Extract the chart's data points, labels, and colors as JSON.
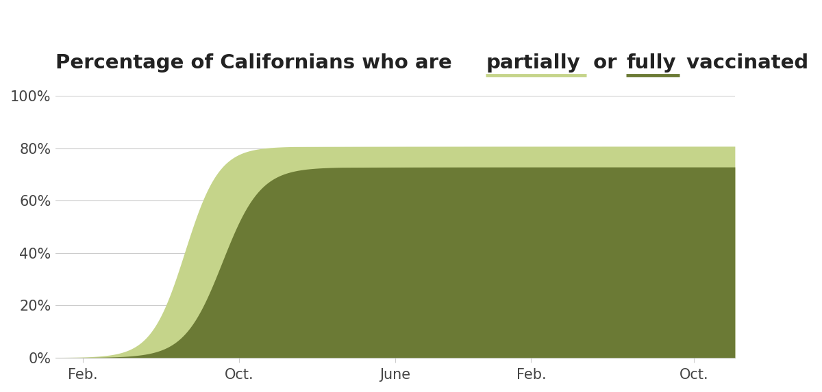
{
  "partially_color": "#c5d48a",
  "fully_color": "#6b7a35",
  "background_color": "#ffffff",
  "grid_color": "#cccccc",
  "tick_label_color": "#444444",
  "title_color": "#222222",
  "ylim": [
    0,
    100
  ],
  "yticks": [
    0,
    20,
    40,
    60,
    80,
    100
  ],
  "ytick_labels": [
    "0%",
    "20%",
    "40%",
    "60%",
    "80%",
    "100%"
  ],
  "xtick_labels": [
    "Feb.",
    "Oct.",
    "June",
    "Feb.",
    "Oct."
  ],
  "xtick_positions": [
    0.04,
    0.27,
    0.5,
    0.7,
    0.94
  ],
  "title_prefix": "Percentage of Californians who are ",
  "title_partial": "partially",
  "title_middle": " or ",
  "title_fully": "fully",
  "title_suffix": " vaccinated",
  "title_fontsize": 21,
  "tick_fontsize": 15,
  "figsize": [
    12.0,
    5.73
  ],
  "dpi": 100,
  "partial_final": 80.7,
  "fully_final": 72.8
}
